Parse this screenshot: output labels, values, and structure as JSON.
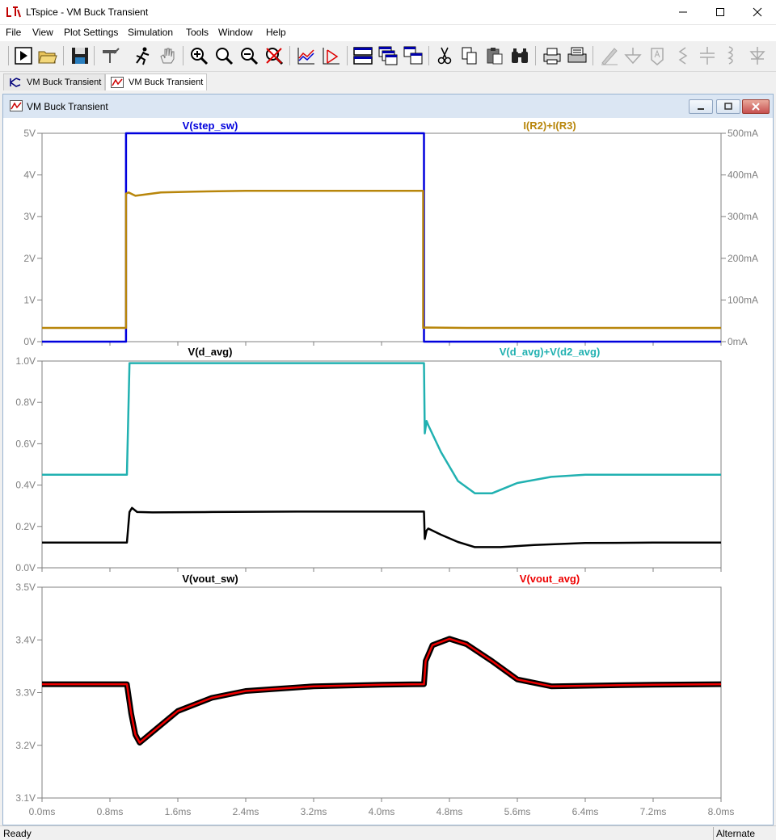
{
  "app": {
    "title": "LTspice - VM Buck Transient",
    "window_controls": {
      "minimize_icon": "minimize-icon",
      "maximize_icon": "maximize-icon",
      "close_icon": "close-icon"
    }
  },
  "menu": [
    "File",
    "View",
    "Plot Settings",
    "Simulation",
    "Tools",
    "Window",
    "Help"
  ],
  "toolbar": {
    "icons": [
      "run-icon",
      "open-icon",
      "save-icon",
      "control-panel-icon",
      "halt-icon",
      "pan-icon",
      "zoom-in-icon",
      "zoom-full-icon",
      "zoom-out-icon",
      "zoom-cancel-icon",
      "autorange-icon",
      "mark-icon",
      "tile-horizontal-icon",
      "cascade-icon",
      "tile-vertical-icon",
      "cut-icon",
      "copy-icon",
      "paste-icon",
      "find-icon",
      "print-preview-icon",
      "print-icon",
      "draw-wire-icon",
      "ground-icon",
      "label-net-icon",
      "resistor-icon",
      "capacitor-icon",
      "inductor-icon",
      "diode-icon"
    ]
  },
  "tabs": [
    {
      "label": "VM Buck Transient",
      "icon": "schematic-icon"
    },
    {
      "label": "VM Buck Transient",
      "icon": "waveform-icon",
      "active": true
    }
  ],
  "plot_window": {
    "title": "VM Buck Transient"
  },
  "colors": {
    "blue": "#0000dd",
    "gold": "#b8860b",
    "black": "#000000",
    "teal": "#21b1b1",
    "red": "#ee0000",
    "axis_text": "#808080",
    "frame": "#808080"
  },
  "chart_data": [
    {
      "type": "line",
      "x_unit": "ms",
      "xlim": [
        0,
        8
      ],
      "ylim": [
        0,
        5
      ],
      "ylabel_ticks": [
        "0V",
        "1V",
        "2V",
        "3V",
        "4V",
        "5V"
      ],
      "y2lim": [
        0,
        500
      ],
      "y2label_ticks": [
        "0mA",
        "100mA",
        "200mA",
        "300mA",
        "400mA",
        "500mA"
      ],
      "series": [
        {
          "name": "V(step_sw)",
          "color": "#0000dd",
          "axis": "left",
          "x": [
            0,
            0.99,
            0.99,
            4.5,
            4.5,
            8.0
          ],
          "y": [
            0,
            0,
            5,
            5,
            0,
            0
          ]
        },
        {
          "name": "I(R2)+I(R3)",
          "color": "#b8860b",
          "axis": "right",
          "x": [
            0,
            0.99,
            0.99,
            1.02,
            1.1,
            1.4,
            1.8,
            2.4,
            3.2,
            4.0,
            4.49,
            4.49,
            4.52,
            5.0,
            6.0,
            8.0
          ],
          "y": [
            33,
            33,
            355,
            358,
            350,
            358,
            360,
            362,
            362,
            362,
            362,
            33,
            34,
            33,
            33,
            33
          ]
        }
      ]
    },
    {
      "type": "line",
      "x_unit": "ms",
      "xlim": [
        0,
        8
      ],
      "ylim": [
        0,
        1.0
      ],
      "ylabel_ticks": [
        "0.0V",
        "0.2V",
        "0.4V",
        "0.6V",
        "0.8V",
        "1.0V"
      ],
      "series": [
        {
          "name": "V(d_avg)",
          "color": "#000000",
          "x": [
            0,
            1.0,
            1.03,
            1.06,
            1.12,
            1.3,
            2.0,
            3.0,
            4.0,
            4.5,
            4.51,
            4.53,
            4.55,
            4.7,
            4.9,
            5.1,
            5.4,
            5.8,
            6.4,
            7.2,
            8.0
          ],
          "y": [
            0.122,
            0.122,
            0.27,
            0.29,
            0.27,
            0.268,
            0.27,
            0.272,
            0.272,
            0.272,
            0.14,
            0.18,
            0.19,
            0.16,
            0.125,
            0.1,
            0.1,
            0.11,
            0.12,
            0.122,
            0.122
          ]
        },
        {
          "name": "V(d_avg)+V(d2_avg)",
          "color": "#21b1b1",
          "x": [
            0,
            1.0,
            1.03,
            4.5,
            4.51,
            4.53,
            4.55,
            4.7,
            4.9,
            5.1,
            5.3,
            5.6,
            6.0,
            6.4,
            7.2,
            8.0
          ],
          "y": [
            0.45,
            0.45,
            0.99,
            0.99,
            0.65,
            0.71,
            0.69,
            0.56,
            0.42,
            0.36,
            0.36,
            0.41,
            0.44,
            0.45,
            0.45,
            0.45
          ]
        }
      ]
    },
    {
      "type": "line",
      "x_unit": "ms",
      "xlim": [
        0,
        8
      ],
      "ylim": [
        3.1,
        3.5
      ],
      "ylabel_ticks": [
        "3.1V",
        "3.2V",
        "3.3V",
        "3.4V",
        "3.5V"
      ],
      "xticks": [
        "0.0ms",
        "0.8ms",
        "1.6ms",
        "2.4ms",
        "3.2ms",
        "4.0ms",
        "4.8ms",
        "5.6ms",
        "6.4ms",
        "7.2ms",
        "8.0ms"
      ],
      "series": [
        {
          "name": "V(vout_sw)",
          "color": "#000000",
          "x": [
            0,
            1.0,
            1.05,
            1.1,
            1.15,
            1.3,
            1.6,
            2.0,
            2.4,
            3.2,
            4.0,
            4.5,
            4.52,
            4.6,
            4.8,
            5.0,
            5.3,
            5.6,
            6.0,
            7.2,
            8.0
          ],
          "y": [
            3.316,
            3.316,
            3.26,
            3.22,
            3.205,
            3.225,
            3.265,
            3.29,
            3.303,
            3.312,
            3.315,
            3.316,
            3.36,
            3.39,
            3.402,
            3.392,
            3.36,
            3.325,
            3.312,
            3.315,
            3.316
          ]
        },
        {
          "name": "V(vout_avg)",
          "color": "#ee0000",
          "x": [
            0,
            1.0,
            1.05,
            1.1,
            1.15,
            1.3,
            1.6,
            2.0,
            2.4,
            3.2,
            4.0,
            4.5,
            4.52,
            4.6,
            4.8,
            5.0,
            5.3,
            5.6,
            6.0,
            7.2,
            8.0
          ],
          "y": [
            3.316,
            3.316,
            3.26,
            3.22,
            3.205,
            3.225,
            3.265,
            3.29,
            3.303,
            3.312,
            3.315,
            3.316,
            3.36,
            3.39,
            3.402,
            3.392,
            3.36,
            3.325,
            3.312,
            3.315,
            3.316
          ]
        }
      ]
    }
  ],
  "status": {
    "left": "Ready",
    "right": "Alternate"
  }
}
